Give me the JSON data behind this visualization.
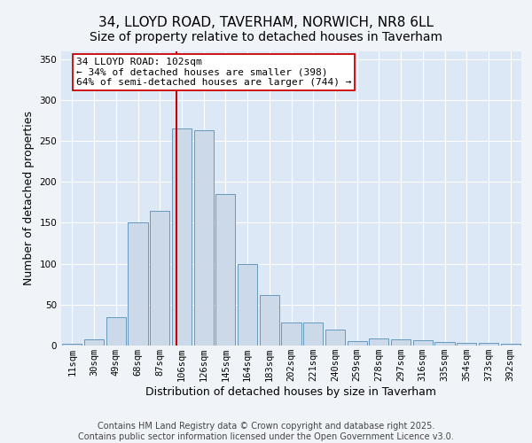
{
  "title_line1": "34, LLOYD ROAD, TAVERHAM, NORWICH, NR8 6LL",
  "title_line2": "Size of property relative to detached houses in Taverham",
  "xlabel": "Distribution of detached houses by size in Taverham",
  "ylabel": "Number of detached properties",
  "footer_line1": "Contains HM Land Registry data © Crown copyright and database right 2025.",
  "footer_line2": "Contains public sector information licensed under the Open Government Licence v3.0.",
  "bin_labels": [
    "11sqm",
    "30sqm",
    "49sqm",
    "68sqm",
    "87sqm",
    "106sqm",
    "126sqm",
    "145sqm",
    "164sqm",
    "183sqm",
    "202sqm",
    "221sqm",
    "240sqm",
    "259sqm",
    "278sqm",
    "297sqm",
    "316sqm",
    "335sqm",
    "354sqm",
    "373sqm",
    "392sqm"
  ],
  "bar_values": [
    2,
    8,
    35,
    150,
    165,
    265,
    263,
    185,
    100,
    62,
    28,
    28,
    20,
    5,
    9,
    8,
    6,
    4,
    3,
    3,
    2
  ],
  "bar_color": "#ccd9e8",
  "bar_edge_color": "#6699bb",
  "red_line_x": 4.78,
  "red_line_label": "34 LLOYD ROAD: 102sqm",
  "annotation_line2": "← 34% of detached houses are smaller (398)",
  "annotation_line3": "64% of semi-detached houses are larger (744) →",
  "annotation_box_facecolor": "#ffffff",
  "annotation_box_edgecolor": "#cc0000",
  "red_line_color": "#cc0000",
  "ylim": [
    0,
    360
  ],
  "yticks": [
    0,
    50,
    100,
    150,
    200,
    250,
    300,
    350
  ],
  "plot_background": "#dce8f5",
  "grid_color": "#ffffff",
  "fig_background": "#f0f4f8",
  "title_fontsize": 11,
  "subtitle_fontsize": 10,
  "axis_label_fontsize": 9,
  "tick_fontsize": 7.5,
  "footer_fontsize": 7,
  "annot_fontsize": 8
}
